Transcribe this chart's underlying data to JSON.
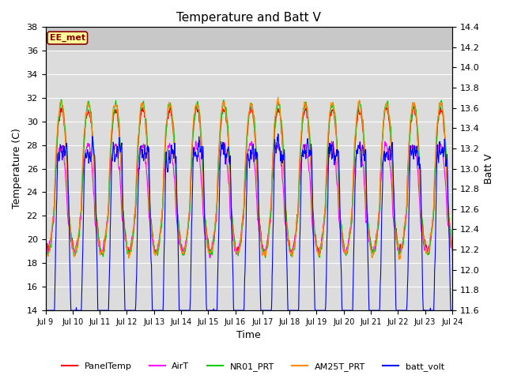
{
  "title": "Temperature and Batt V",
  "xlabel": "Time",
  "ylabel_left": "Temperature (C)",
  "ylabel_right": "Batt V",
  "annotation": "EE_met",
  "annotation_color": "#8B0000",
  "annotation_bg": "#FFFF99",
  "ylim_left": [
    14,
    38
  ],
  "ylim_right": [
    11.6,
    14.4
  ],
  "xtick_labels": [
    "Jul 9",
    "Jul 10",
    "Jul 11",
    "Jul 12",
    "Jul 13",
    "Jul 14",
    "Jul 15",
    "Jul 16",
    "Jul 17",
    "Jul 18",
    "Jul 19",
    "Jul 20",
    "Jul 21",
    "Jul 22",
    "Jul 23",
    "Jul 24"
  ],
  "series": {
    "PanelTemp": {
      "color": "#FF0000",
      "lw": 0.8
    },
    "AirT": {
      "color": "#FF00FF",
      "lw": 0.8
    },
    "NR01_PRT": {
      "color": "#00CC00",
      "lw": 0.8
    },
    "AM25T_PRT": {
      "color": "#FF8800",
      "lw": 0.8
    },
    "batt_volt": {
      "color": "#0000FF",
      "lw": 0.8
    }
  },
  "background_color": "#FFFFFF",
  "plot_bg_color": "#DCDCDC",
  "plot_bg_upper_color": "#C8C8C8",
  "grid_color": "#FFFFFF",
  "figsize": [
    6.4,
    4.8
  ],
  "dpi": 100
}
